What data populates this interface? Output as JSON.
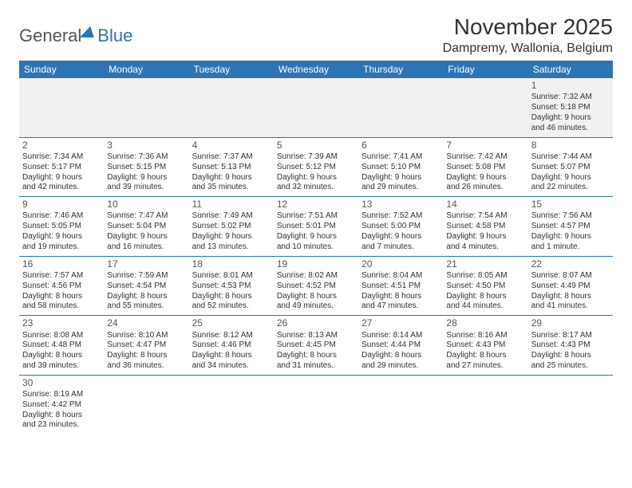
{
  "brand": {
    "part1": "General",
    "part2": "Blue"
  },
  "title": "November 2025",
  "location": "Dampremy, Wallonia, Belgium",
  "colors": {
    "accent": "#2e74b5",
    "header_bg": "#2e74b5",
    "header_text": "#ffffff",
    "page_bg": "#ffffff",
    "text": "#333333",
    "row_alt": "#f1f1f1"
  },
  "weekdays": [
    "Sunday",
    "Monday",
    "Tuesday",
    "Wednesday",
    "Thursday",
    "Friday",
    "Saturday"
  ],
  "weeks": [
    [
      null,
      null,
      null,
      null,
      null,
      null,
      {
        "n": "1",
        "sr": "Sunrise: 7:32 AM",
        "ss": "Sunset: 5:18 PM",
        "d1": "Daylight: 9 hours",
        "d2": "and 46 minutes."
      }
    ],
    [
      {
        "n": "2",
        "sr": "Sunrise: 7:34 AM",
        "ss": "Sunset: 5:17 PM",
        "d1": "Daylight: 9 hours",
        "d2": "and 42 minutes."
      },
      {
        "n": "3",
        "sr": "Sunrise: 7:36 AM",
        "ss": "Sunset: 5:15 PM",
        "d1": "Daylight: 9 hours",
        "d2": "and 39 minutes."
      },
      {
        "n": "4",
        "sr": "Sunrise: 7:37 AM",
        "ss": "Sunset: 5:13 PM",
        "d1": "Daylight: 9 hours",
        "d2": "and 35 minutes."
      },
      {
        "n": "5",
        "sr": "Sunrise: 7:39 AM",
        "ss": "Sunset: 5:12 PM",
        "d1": "Daylight: 9 hours",
        "d2": "and 32 minutes."
      },
      {
        "n": "6",
        "sr": "Sunrise: 7:41 AM",
        "ss": "Sunset: 5:10 PM",
        "d1": "Daylight: 9 hours",
        "d2": "and 29 minutes."
      },
      {
        "n": "7",
        "sr": "Sunrise: 7:42 AM",
        "ss": "Sunset: 5:08 PM",
        "d1": "Daylight: 9 hours",
        "d2": "and 26 minutes."
      },
      {
        "n": "8",
        "sr": "Sunrise: 7:44 AM",
        "ss": "Sunset: 5:07 PM",
        "d1": "Daylight: 9 hours",
        "d2": "and 22 minutes."
      }
    ],
    [
      {
        "n": "9",
        "sr": "Sunrise: 7:46 AM",
        "ss": "Sunset: 5:05 PM",
        "d1": "Daylight: 9 hours",
        "d2": "and 19 minutes."
      },
      {
        "n": "10",
        "sr": "Sunrise: 7:47 AM",
        "ss": "Sunset: 5:04 PM",
        "d1": "Daylight: 9 hours",
        "d2": "and 16 minutes."
      },
      {
        "n": "11",
        "sr": "Sunrise: 7:49 AM",
        "ss": "Sunset: 5:02 PM",
        "d1": "Daylight: 9 hours",
        "d2": "and 13 minutes."
      },
      {
        "n": "12",
        "sr": "Sunrise: 7:51 AM",
        "ss": "Sunset: 5:01 PM",
        "d1": "Daylight: 9 hours",
        "d2": "and 10 minutes."
      },
      {
        "n": "13",
        "sr": "Sunrise: 7:52 AM",
        "ss": "Sunset: 5:00 PM",
        "d1": "Daylight: 9 hours",
        "d2": "and 7 minutes."
      },
      {
        "n": "14",
        "sr": "Sunrise: 7:54 AM",
        "ss": "Sunset: 4:58 PM",
        "d1": "Daylight: 9 hours",
        "d2": "and 4 minutes."
      },
      {
        "n": "15",
        "sr": "Sunrise: 7:56 AM",
        "ss": "Sunset: 4:57 PM",
        "d1": "Daylight: 9 hours",
        "d2": "and 1 minute."
      }
    ],
    [
      {
        "n": "16",
        "sr": "Sunrise: 7:57 AM",
        "ss": "Sunset: 4:56 PM",
        "d1": "Daylight: 8 hours",
        "d2": "and 58 minutes."
      },
      {
        "n": "17",
        "sr": "Sunrise: 7:59 AM",
        "ss": "Sunset: 4:54 PM",
        "d1": "Daylight: 8 hours",
        "d2": "and 55 minutes."
      },
      {
        "n": "18",
        "sr": "Sunrise: 8:01 AM",
        "ss": "Sunset: 4:53 PM",
        "d1": "Daylight: 8 hours",
        "d2": "and 52 minutes."
      },
      {
        "n": "19",
        "sr": "Sunrise: 8:02 AM",
        "ss": "Sunset: 4:52 PM",
        "d1": "Daylight: 8 hours",
        "d2": "and 49 minutes."
      },
      {
        "n": "20",
        "sr": "Sunrise: 8:04 AM",
        "ss": "Sunset: 4:51 PM",
        "d1": "Daylight: 8 hours",
        "d2": "and 47 minutes."
      },
      {
        "n": "21",
        "sr": "Sunrise: 8:05 AM",
        "ss": "Sunset: 4:50 PM",
        "d1": "Daylight: 8 hours",
        "d2": "and 44 minutes."
      },
      {
        "n": "22",
        "sr": "Sunrise: 8:07 AM",
        "ss": "Sunset: 4:49 PM",
        "d1": "Daylight: 8 hours",
        "d2": "and 41 minutes."
      }
    ],
    [
      {
        "n": "23",
        "sr": "Sunrise: 8:08 AM",
        "ss": "Sunset: 4:48 PM",
        "d1": "Daylight: 8 hours",
        "d2": "and 39 minutes."
      },
      {
        "n": "24",
        "sr": "Sunrise: 8:10 AM",
        "ss": "Sunset: 4:47 PM",
        "d1": "Daylight: 8 hours",
        "d2": "and 36 minutes."
      },
      {
        "n": "25",
        "sr": "Sunrise: 8:12 AM",
        "ss": "Sunset: 4:46 PM",
        "d1": "Daylight: 8 hours",
        "d2": "and 34 minutes."
      },
      {
        "n": "26",
        "sr": "Sunrise: 8:13 AM",
        "ss": "Sunset: 4:45 PM",
        "d1": "Daylight: 8 hours",
        "d2": "and 31 minutes."
      },
      {
        "n": "27",
        "sr": "Sunrise: 8:14 AM",
        "ss": "Sunset: 4:44 PM",
        "d1": "Daylight: 8 hours",
        "d2": "and 29 minutes."
      },
      {
        "n": "28",
        "sr": "Sunrise: 8:16 AM",
        "ss": "Sunset: 4:43 PM",
        "d1": "Daylight: 8 hours",
        "d2": "and 27 minutes."
      },
      {
        "n": "29",
        "sr": "Sunrise: 8:17 AM",
        "ss": "Sunset: 4:43 PM",
        "d1": "Daylight: 8 hours",
        "d2": "and 25 minutes."
      }
    ],
    [
      {
        "n": "30",
        "sr": "Sunrise: 8:19 AM",
        "ss": "Sunset: 4:42 PM",
        "d1": "Daylight: 8 hours",
        "d2": "and 23 minutes."
      },
      null,
      null,
      null,
      null,
      null,
      null
    ]
  ]
}
